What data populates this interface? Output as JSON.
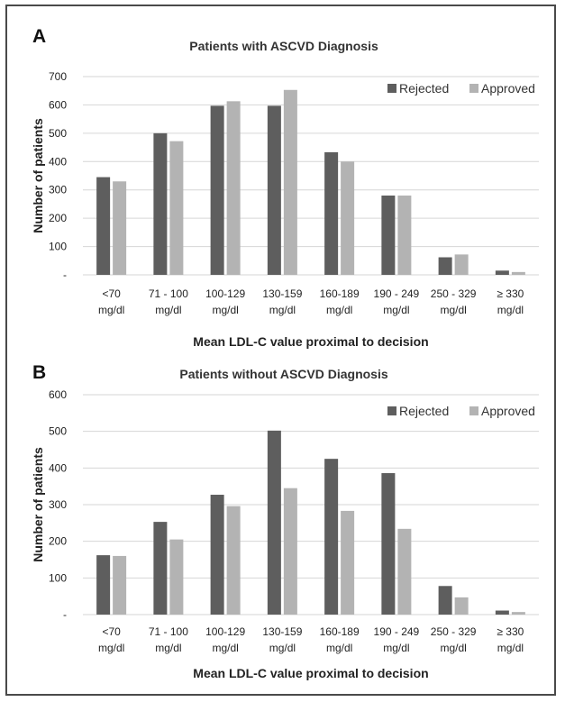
{
  "chart_data": [
    {
      "type": "bar",
      "panel": "A",
      "title": "Patients with ASCVD Diagnosis",
      "xlabel": "Mean LDL-C value proximal to decision",
      "ylabel": "Number of patients",
      "ylim": [
        0,
        700
      ],
      "yticks": [
        "-",
        "100",
        "200",
        "300",
        "400",
        "500",
        "600",
        "700"
      ],
      "categories": [
        [
          "<70",
          "mg/dl"
        ],
        [
          "71 - 100",
          "mg/dl"
        ],
        [
          "100-129",
          "mg/dl"
        ],
        [
          "130-159",
          "mg/dl"
        ],
        [
          "160-189",
          "mg/dl"
        ],
        [
          "190 - 249",
          "mg/dl"
        ],
        [
          "250 - 329",
          "mg/dl"
        ],
        [
          "≥ 330",
          "mg/dl"
        ]
      ],
      "series": [
        {
          "name": "Rejected",
          "color": "#5e5e5e",
          "values": [
            345,
            500,
            597,
            597,
            433,
            280,
            62,
            15
          ]
        },
        {
          "name": "Approved",
          "color": "#b3b3b3",
          "values": [
            330,
            472,
            613,
            653,
            400,
            280,
            72,
            10
          ]
        }
      ],
      "grid": true,
      "legend": "top-right"
    },
    {
      "type": "bar",
      "panel": "B",
      "title": "Patients without ASCVD Diagnosis",
      "xlabel": "Mean LDL-C value proximal to decision",
      "ylabel": "Number of patients",
      "ylim": [
        0,
        600
      ],
      "yticks": [
        "-",
        "100",
        "200",
        "300",
        "400",
        "500",
        "600"
      ],
      "categories": [
        [
          "<70",
          "mg/dl"
        ],
        [
          "71 - 100",
          "mg/dl"
        ],
        [
          "100-129",
          "mg/dl"
        ],
        [
          "130-159",
          "mg/dl"
        ],
        [
          "160-189",
          "mg/dl"
        ],
        [
          "190 - 249",
          "mg/dl"
        ],
        [
          "250 - 329",
          "mg/dl"
        ],
        [
          "≥ 330",
          "mg/dl"
        ]
      ],
      "series": [
        {
          "name": "Rejected",
          "color": "#5e5e5e",
          "values": [
            162,
            253,
            327,
            502,
            425,
            386,
            78,
            11
          ]
        },
        {
          "name": "Approved",
          "color": "#b3b3b3",
          "values": [
            160,
            205,
            296,
            345,
            283,
            234,
            47,
            7
          ]
        }
      ],
      "grid": true,
      "legend": "top-right"
    }
  ]
}
